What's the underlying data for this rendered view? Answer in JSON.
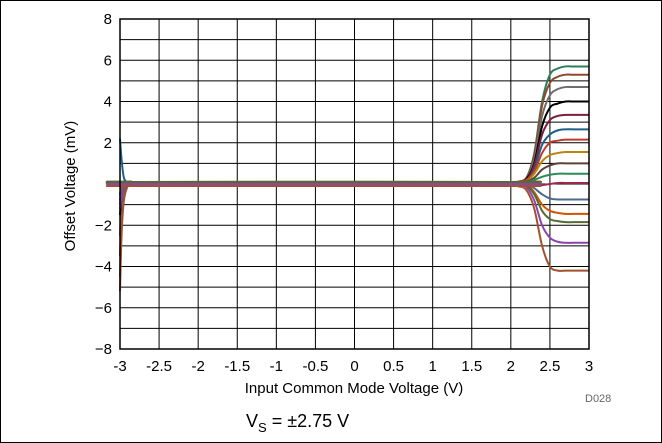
{
  "chart_data": {
    "type": "line",
    "xlabel": "Input Common Mode Voltage (V)",
    "ylabel": "Offset Voltage (mV)",
    "xlim": [
      -3,
      3
    ],
    "ylim": [
      -8,
      8
    ],
    "x_ticks": [
      "-3",
      "-2.5",
      "-2",
      "-1.5",
      "-1",
      "-0.5",
      "0",
      "0.5",
      "1",
      "1.5",
      "2",
      "2.5",
      "3"
    ],
    "y_ticks": [
      "-8",
      "-6",
      "-4",
      "-2",
      "2",
      "4",
      "6",
      "8"
    ],
    "grid": true,
    "figure_code": "D028",
    "caption_main": "V",
    "caption_sub": "S",
    "caption_rest": " = ±2.75 V",
    "colors": [
      "#2e7d5b",
      "#8b4a2b",
      "#6e6e6e",
      "#000000",
      "#7b1f3a",
      "#1f5f8b",
      "#c0392b",
      "#b8860b",
      "#5d4037",
      "#2e8b57",
      "#9c2b4b",
      "#4a6b8b",
      "#d35400",
      "#556b2f",
      "#8e44ad",
      "#a0522d"
    ],
    "series_description_note_free": true,
    "series": [
      {
        "x": [
          -3,
          -2.98,
          -2.95,
          -2.9,
          -2.85,
          -2.8,
          2.0,
          2.1,
          2.2,
          2.3,
          2.4,
          2.5,
          2.6,
          2.7,
          2.8,
          3.0
        ],
        "values": [
          -4.5,
          -2.0,
          -0.6,
          0.05,
          0.1,
          0.1,
          0.1,
          0.12,
          0.3,
          1.5,
          4.0,
          5.3,
          5.6,
          5.7,
          5.7,
          5.7
        ]
      },
      {
        "x": [
          -3,
          -2.98,
          -2.95,
          -2.9,
          -2.85,
          -2.8,
          2.0,
          2.1,
          2.2,
          2.3,
          2.4,
          2.5,
          2.6,
          2.7,
          2.8,
          3.0
        ],
        "values": [
          -3.5,
          -1.5,
          -0.4,
          0.05,
          0.1,
          0.1,
          0.1,
          0.12,
          0.3,
          1.4,
          3.8,
          4.9,
          5.2,
          5.3,
          5.3,
          5.3
        ]
      },
      {
        "x": [
          -3,
          -2.98,
          -2.95,
          -2.9,
          -2.85,
          -2.8,
          2.0,
          2.1,
          2.2,
          2.3,
          2.4,
          2.5,
          2.6,
          2.7,
          2.8,
          3.0
        ],
        "values": [
          -2.5,
          -1.0,
          -0.3,
          0.05,
          0.1,
          0.1,
          0.1,
          0.12,
          0.3,
          1.2,
          3.3,
          4.3,
          4.6,
          4.7,
          4.7,
          4.7
        ]
      },
      {
        "x": [
          -3,
          -2.98,
          -2.95,
          -2.9,
          -2.85,
          -2.8,
          2.0,
          2.1,
          2.2,
          2.3,
          2.4,
          2.5,
          2.6,
          2.7,
          2.8,
          3.0
        ],
        "values": [
          -1.5,
          -0.6,
          -0.2,
          0.05,
          0.1,
          0.1,
          0.1,
          0.12,
          0.25,
          1.0,
          2.8,
          3.7,
          3.9,
          4.0,
          4.0,
          4.0
        ]
      },
      {
        "x": [
          -3,
          -2.98,
          -2.95,
          -2.9,
          -2.85,
          -2.8,
          2.0,
          2.1,
          2.2,
          2.3,
          2.4,
          2.5,
          2.6,
          2.7,
          2.8,
          3.0
        ],
        "values": [
          -1.0,
          -0.4,
          -0.1,
          0.1,
          0.1,
          0.1,
          0.1,
          0.12,
          0.2,
          0.9,
          2.4,
          3.1,
          3.3,
          3.35,
          3.35,
          3.35
        ]
      },
      {
        "x": [
          -3,
          -2.98,
          -2.95,
          -2.9,
          -2.85,
          -2.8,
          2.0,
          2.1,
          2.2,
          2.3,
          2.4,
          2.5,
          2.6,
          2.7,
          2.8,
          3.0
        ],
        "values": [
          2.2,
          1.2,
          0.3,
          0.05,
          0.05,
          0.05,
          0.05,
          0.08,
          0.15,
          0.7,
          1.9,
          2.4,
          2.6,
          2.65,
          2.65,
          2.65
        ]
      },
      {
        "x": [
          -3,
          -2.98,
          -2.95,
          -2.9,
          -2.85,
          -2.8,
          2.0,
          2.1,
          2.2,
          2.3,
          2.4,
          2.5,
          2.6,
          2.7,
          2.8,
          3.0
        ],
        "values": [
          -0.8,
          -0.3,
          0.0,
          0.1,
          0.1,
          0.1,
          0.1,
          0.12,
          0.2,
          0.6,
          1.5,
          2.0,
          2.1,
          2.15,
          2.15,
          2.15
        ]
      },
      {
        "x": [
          -3,
          -2.98,
          -2.95,
          -2.9,
          -2.85,
          -2.8,
          2.0,
          2.1,
          2.2,
          2.3,
          2.4,
          2.5,
          2.6,
          2.7,
          2.8,
          3.0
        ],
        "values": [
          -0.6,
          -0.2,
          0.0,
          0.1,
          0.1,
          0.1,
          0.1,
          0.12,
          0.15,
          0.5,
          1.1,
          1.4,
          1.5,
          1.55,
          1.55,
          1.55
        ]
      },
      {
        "x": [
          -3,
          -2.98,
          -2.95,
          -2.9,
          -2.85,
          -2.8,
          2.0,
          2.1,
          2.2,
          2.3,
          2.4,
          2.5,
          2.6,
          2.7,
          2.8,
          3.0
        ],
        "values": [
          -0.5,
          -0.2,
          0.0,
          0.1,
          0.1,
          0.1,
          0.1,
          0.1,
          0.12,
          0.3,
          0.7,
          0.9,
          1.0,
          1.0,
          1.0,
          1.0
        ]
      },
      {
        "x": [
          -3,
          -2.98,
          -2.95,
          -2.9,
          -2.85,
          -2.8,
          2.0,
          2.1,
          2.2,
          2.3,
          2.4,
          2.5,
          2.6,
          2.7,
          2.8,
          3.0
        ],
        "values": [
          -0.5,
          -0.2,
          0.0,
          0.1,
          0.1,
          0.1,
          0.1,
          0.1,
          0.1,
          0.2,
          0.35,
          0.45,
          0.5,
          0.5,
          0.5,
          0.5
        ]
      },
      {
        "x": [
          -3,
          -2.98,
          -2.95,
          -2.9,
          -2.85,
          -2.8,
          2.0,
          2.1,
          2.2,
          2.3,
          2.4,
          2.5,
          2.6,
          2.7,
          2.8,
          3.0
        ],
        "values": [
          -0.5,
          -0.2,
          0.0,
          0.1,
          0.1,
          0.1,
          0.1,
          0.1,
          0.08,
          0.0,
          -0.05,
          0.0,
          0.05,
          0.05,
          0.05,
          0.05
        ]
      },
      {
        "x": [
          -3,
          -2.98,
          -2.95,
          -2.9,
          -2.85,
          -2.8,
          2.0,
          2.1,
          2.2,
          2.3,
          2.4,
          2.5,
          2.6,
          2.7,
          2.8,
          3.0
        ],
        "values": [
          -0.5,
          -0.2,
          0.0,
          0.1,
          0.1,
          0.1,
          0.1,
          0.08,
          0.05,
          -0.2,
          -0.5,
          -0.7,
          -0.75,
          -0.75,
          -0.75,
          -0.75
        ]
      },
      {
        "x": [
          -3,
          -2.98,
          -2.95,
          -2.9,
          -2.85,
          -2.8,
          2.0,
          2.1,
          2.2,
          2.3,
          2.4,
          2.5,
          2.6,
          2.7,
          2.8,
          3.0
        ],
        "values": [
          -0.6,
          -0.3,
          0.0,
          0.1,
          0.1,
          0.1,
          0.1,
          0.08,
          0.0,
          -0.4,
          -1.0,
          -1.3,
          -1.4,
          -1.45,
          -1.45,
          -1.45
        ]
      },
      {
        "x": [
          -3,
          -2.98,
          -2.95,
          -2.9,
          -2.85,
          -2.8,
          2.0,
          2.1,
          2.2,
          2.3,
          2.4,
          2.5,
          2.6,
          2.7,
          2.8,
          3.0
        ],
        "values": [
          -0.8,
          -0.4,
          -0.1,
          0.1,
          0.1,
          0.1,
          0.1,
          0.08,
          -0.05,
          -0.5,
          -1.3,
          -1.7,
          -1.8,
          -1.85,
          -1.85,
          -1.85
        ]
      },
      {
        "x": [
          -3,
          -2.98,
          -2.95,
          -2.9,
          -2.85,
          -2.8,
          2.0,
          2.1,
          2.2,
          2.3,
          2.4,
          2.5,
          2.6,
          2.7,
          2.8,
          3.0
        ],
        "values": [
          -1.2,
          -0.6,
          -0.2,
          0.0,
          0.0,
          0.0,
          0.0,
          -0.02,
          -0.15,
          -0.8,
          -2.0,
          -2.6,
          -2.8,
          -2.85,
          -2.85,
          -2.85
        ]
      },
      {
        "x": [
          -3,
          -2.98,
          -2.95,
          -2.9,
          -2.85,
          -2.8,
          2.0,
          2.1,
          2.2,
          2.3,
          2.4,
          2.5,
          2.6,
          2.7,
          2.8,
          3.0
        ],
        "values": [
          -5.2,
          -2.5,
          -0.8,
          -0.1,
          -0.1,
          -0.1,
          -0.1,
          -0.12,
          -0.3,
          -1.2,
          -3.0,
          -4.0,
          -4.2,
          -4.2,
          -4.2,
          -4.2
        ]
      }
    ]
  }
}
